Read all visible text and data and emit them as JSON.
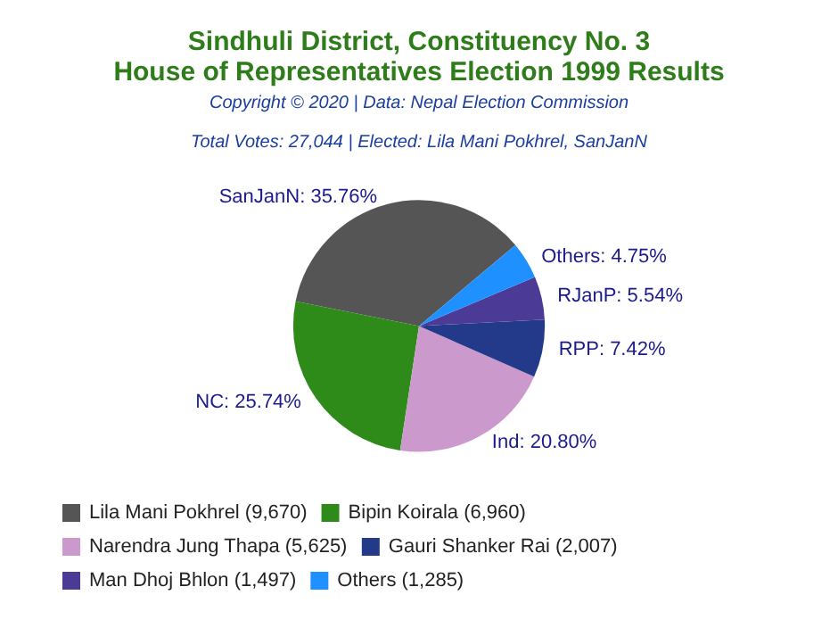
{
  "chart_data": {
    "type": "pie",
    "title": "Sindhuli District, Constituency No. 3\nHouse of Representatives Election 1999 Results",
    "subtitle": "Total Votes: 27,044 | Elected: Lila Mani Pokhrel, SanJanN",
    "annotations": [
      "Copyright © 2020 | Data: Nepal Election Commission"
    ],
    "categories": [
      "Lila Mani Pokhrel (9,670)",
      "Bipin Koirala (6,960)",
      "Narendra Jung Thapa (5,625)",
      "Gauri Shanker Rai (2,007)",
      "Man Dhoj Bhlon (1,497)",
      "Others (1,285)"
    ],
    "values": [
      35.76,
      25.74,
      20.8,
      7.42,
      5.54,
      4.75
    ],
    "colors": [
      "#555555",
      "#2e8b1a",
      "#cc99cc",
      "#233a8a",
      "#4b3a96",
      "#1e90ff"
    ],
    "value_labels": [
      "SanJanN: 35.76%",
      "NC: 25.74%",
      "Ind: 20.80%",
      "RPP: 7.42%",
      "RJanP: 5.54%",
      "Others: 4.75%"
    ],
    "legend": "bottom"
  }
}
